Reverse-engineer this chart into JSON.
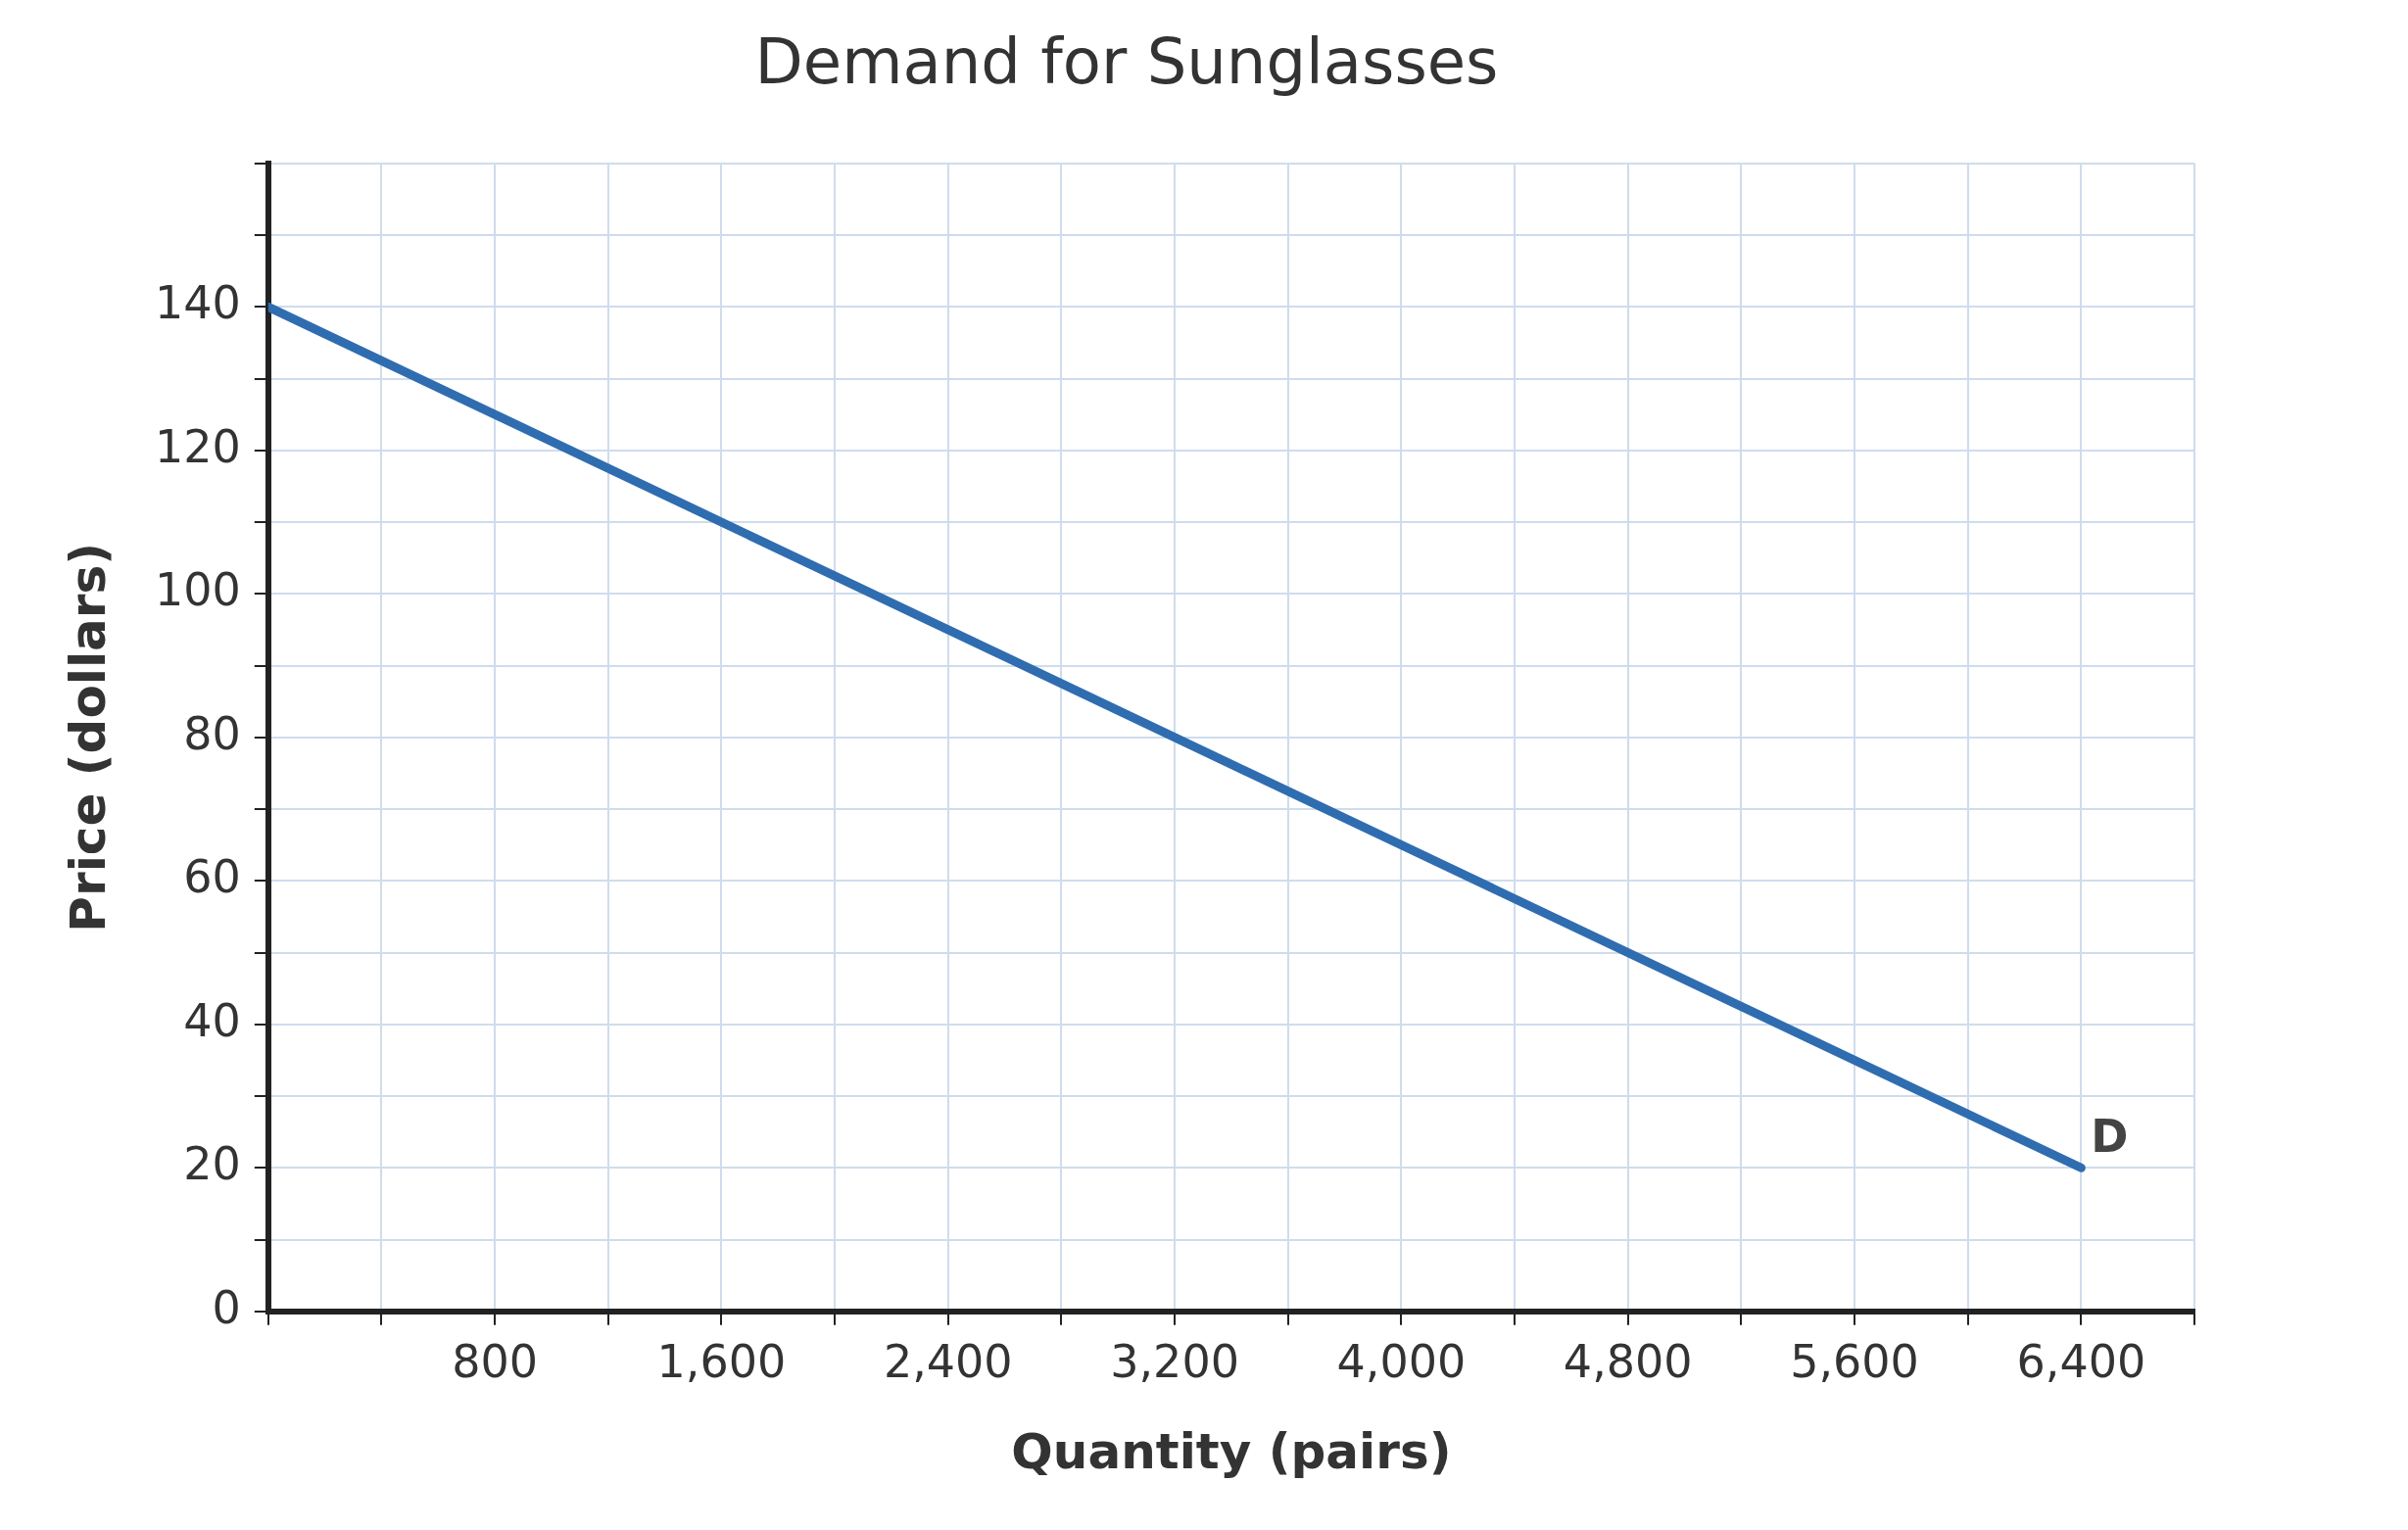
{
  "chart_data": {
    "type": "line",
    "title": "Demand for Sunglasses",
    "xlabel": "Quantity (pairs)",
    "ylabel": "Price (dollars)",
    "series": [
      {
        "color": "#2f6db0",
        "x": [
          0,
          6400
        ],
        "values": [
          140,
          20
        ]
      }
    ],
    "xlim": [
      0,
      6800
    ],
    "xticks": [
      {
        "value": 0,
        "label": null
      },
      {
        "value": 400,
        "label": null
      },
      800,
      {
        "value": 1200,
        "label": null
      },
      {
        "value": 1600,
        "label": "1,600"
      },
      {
        "value": 2000,
        "label": null
      },
      {
        "value": 2400,
        "label": "2,400"
      },
      {
        "value": 2800,
        "label": null
      },
      {
        "value": 3200,
        "label": "3,200"
      },
      {
        "value": 3600,
        "label": null
      },
      {
        "value": 4000,
        "label": "4,000"
      },
      {
        "value": 4400,
        "label": null
      },
      {
        "value": 4800,
        "label": "4,800"
      },
      {
        "value": 5200,
        "label": null
      },
      {
        "value": 5600,
        "label": "5,600"
      },
      {
        "value": 6000,
        "label": null
      },
      {
        "value": 6400,
        "label": "6,400"
      },
      {
        "value": 6800,
        "label": null
      }
    ],
    "ylim": [
      0,
      160
    ],
    "yticks": [
      0,
      {
        "value": 10,
        "label": null
      },
      20,
      {
        "value": 30,
        "label": null
      },
      40,
      {
        "value": 50,
        "label": null
      },
      60,
      {
        "value": 70,
        "label": null
      },
      80,
      {
        "value": 90,
        "label": null
      },
      100,
      {
        "value": 110,
        "label": null
      },
      120,
      {
        "value": 130,
        "label": null
      },
      140,
      {
        "value": 150,
        "label": null
      },
      {
        "value": 160,
        "label": null
      }
    ],
    "annotations": [
      {
        "text": "D",
        "x": 6400,
        "y": 20
      }
    ],
    "grid": true,
    "legend": false,
    "marker": "none",
    "line_style": "solid"
  }
}
